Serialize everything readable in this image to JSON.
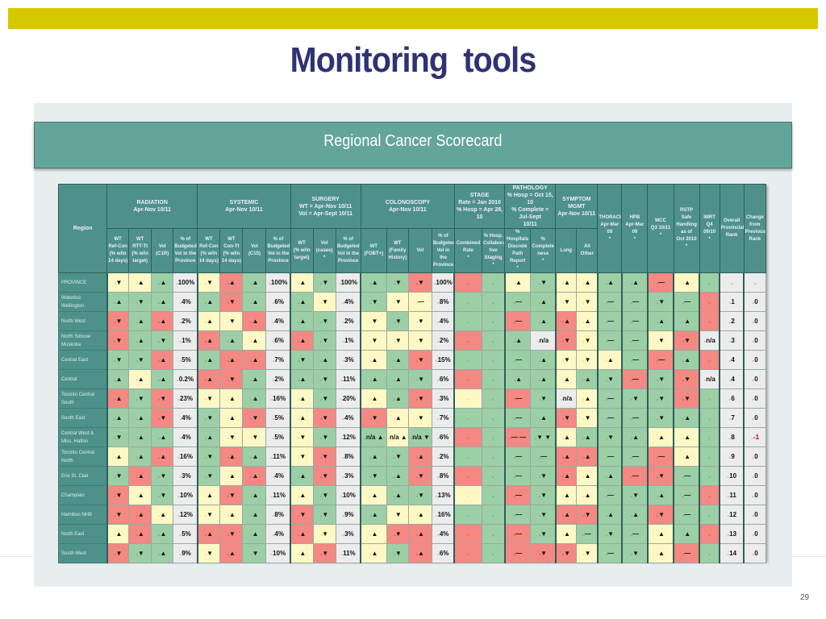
{
  "slide": {
    "title": "Monitoring  tools",
    "banner": "Regional  Cancer Scorecard",
    "page_number": "29"
  },
  "colors": {
    "G": "#9ccfa5",
    "Y": "#fdf8c4",
    "R": "#f48882",
    "W": "#ececec",
    "header": "#4d918a",
    "title": "#2f3273",
    "topbar": "#d6c800"
  },
  "header": {
    "region": "Region",
    "groups": [
      {
        "label": "RADIATION\nApr-Nov 10/11",
        "subs": [
          "WT\nRef-Con\n(% w/in\n14 days)",
          "WT\nRTT-Tt\n(% w/in\ntarget)",
          "Vol\n(C1R)",
          "% of\nBudgeted\nVol in the\nProvince"
        ]
      },
      {
        "label": "SYSTEMIC\nApr-Nov 10/11",
        "subs": [
          "WT\nRef-Con\n(% w/in\n14 days)",
          "WT\nCon-Tt\n(% w/in\n14 days)",
          "Vol\n(C15)",
          "% of\nBudgeted\nVol in the\nProvince"
        ]
      },
      {
        "label": "SURGERY\nWT = Apr-Nov 10/11\nVol = Apr-Sept 10/11",
        "subs": [
          "WT\n(% w/in\ntarget)",
          "Vol\n(cases)\n*",
          "% of\nBudgeted\nVol in the\nProvince"
        ]
      },
      {
        "label": "COLONOSCOPY\nApr-Nov 10/11",
        "subs": [
          "WT\n(FOBT+)",
          "WT\n(Family\nHistory)",
          "Vol",
          "% of\nBudgeted\nVol in the\nProvince"
        ]
      },
      {
        "label": "STAGE\nRate = Jan 2010\n% Hosp = Apr 28, 10",
        "subs": [
          "Combined\nRate\n*",
          "% Hosp.\nCollabora\ntive\nStaging\n*"
        ]
      },
      {
        "label": "PATHOLOGY\n% Hosp = Oct 15, 10\n% Complete = Jul-Sept\n10/11",
        "subs": [
          "% Hospitals\nDiscrete\nPath\nReport\n*",
          "%\nComplete\nness\n*"
        ]
      },
      {
        "label": "SYMPTOM MGMT\nApr-Nov 10/11",
        "subs": [
          "Lung",
          "All\nOther"
        ]
      }
    ],
    "singles": [
      "THORACIC\nApr-Mar\n09\n*",
      "HPB\nApr-Mar\n09\n*",
      "MCC\nQ3 10/11\n*",
      "RSTP Safe\nHandling\nas of\nOct 2010\n*",
      "IMRT\nQ4\n09/10\n*",
      "Overall\nProvincial\nRank",
      "Change\nfrom\nPrevious\nRank"
    ]
  },
  "rows": [
    {
      "region": "PROVINCE",
      "cells": [
        "Y▼",
        "Y▲",
        "G▲",
        "W100%",
        "Y▼",
        "R▲",
        "G▲",
        "W100%",
        "Y▲",
        "G▼",
        "W100%",
        "G▲",
        "G▼",
        "R▼",
        "W100%",
        "R",
        "G",
        "Y▲",
        "G▼",
        "Y▲",
        "Y▲",
        "G▲",
        "G▲",
        "R—",
        "Y▲",
        "G",
        "W",
        "W"
      ]
    },
    {
      "region": "Waterloo\nWellington",
      "cells": [
        "G▲",
        "G▼",
        "G▲",
        "W4%",
        "G▲",
        "R▼",
        "G▲",
        "W6%",
        "G▲",
        "Y▼",
        "W4%",
        "G▼",
        "Y▼",
        "Y—",
        "W8%",
        "G",
        "G",
        "G—",
        "G▲",
        "Y▼",
        "Y▼",
        "G—",
        "G—",
        "G▼",
        "G—",
        "R",
        "W1",
        "W0"
      ]
    },
    {
      "region": "North West",
      "cells": [
        "R▼",
        "G▲",
        "R▲",
        "W2%",
        "Y▲",
        "Y▼",
        "R▲",
        "W4%",
        "G▲",
        "G▼",
        "W2%",
        "Y▼",
        "G▼",
        "Y▼",
        "W4%",
        "G",
        "G",
        "R—",
        "G▲",
        "R▲",
        "Y▲",
        "G—",
        "G—",
        "G▲",
        "G▲",
        "R",
        "W2",
        "W0"
      ]
    },
    {
      "region": "North Simcoe\nMuskoka",
      "cells": [
        "R▼",
        "G▲",
        "G▼",
        "W1%",
        "R▲",
        "G▲",
        "Y▲",
        "W6%",
        "R▲",
        "G▼",
        "W1%",
        "Y▼",
        "Y▼",
        "Y▼",
        "W2%",
        "R",
        "G",
        "G▲",
        "Wn/a",
        "R▼",
        "Y▼",
        "G—",
        "G—",
        "Y▼",
        "R▼",
        "Wn/a",
        "W3",
        "W0"
      ]
    },
    {
      "region": "Central East",
      "cells": [
        "G▼",
        "G▼",
        "R▲",
        "W5%",
        "G▲",
        "R▲",
        "R▲",
        "W7%",
        "G▼",
        "G▲",
        "W3%",
        "Y▲",
        "G▲",
        "R▼",
        "W15%",
        "G",
        "G",
        "G—",
        "G▲",
        "Y▼",
        "Y▼",
        "Y▲",
        "G—",
        "R—",
        "G▲",
        "R",
        "W4",
        "W0"
      ]
    },
    {
      "region": "Central",
      "cells": [
        "G▲",
        "Y▲",
        "G▲",
        "W0.2%",
        "R▲",
        "R▼",
        "G▲",
        "W2%",
        "G▲",
        "G▼",
        "W11%",
        "G▲",
        "G▲",
        "G▼",
        "W6%",
        "R",
        "G",
        "G▲",
        "G▲",
        "Y▲",
        "G▲",
        "G▼",
        "R—",
        "G▼",
        "R▼",
        "Wn/a",
        "W4",
        "W0"
      ]
    },
    {
      "region": "Toronto Central\nSouth",
      "cells": [
        "R▲",
        "G▼",
        "R▼",
        "W23%",
        "Y▼",
        "Y▲",
        "G▲",
        "W16%",
        "Y▲",
        "G▼",
        "W20%",
        "Y▲",
        "G▲",
        "R▼",
        "W3%",
        "Y",
        "G",
        "R—",
        "G▼",
        "Wn/a",
        "Y▲",
        "G—",
        "G▼",
        "G▼",
        "R▼",
        "G",
        "W6",
        "W0"
      ]
    },
    {
      "region": "South East",
      "cells": [
        "G▲",
        "G▲",
        "R▼",
        "W4%",
        "G▼",
        "Y▲",
        "R▼",
        "W5%",
        "Y▲",
        "R▼",
        "W4%",
        "R▼",
        "Y▲",
        "Y▼",
        "W7%",
        "G",
        "G",
        "G—",
        "G▲",
        "R▼",
        "Y▼",
        "G—",
        "G—",
        "G▼",
        "G▲",
        "G",
        "W7",
        "W0"
      ]
    },
    {
      "region": "Central West &\nMiss. Halton",
      "cells": [
        "G▼",
        "G▲",
        "G▲",
        "W4%",
        "G▲",
        "Y▼",
        "Y▼",
        "W5%",
        "Y▼",
        "G▼",
        "W12%",
        "Gn/a ▲",
        "Yn/a ▲",
        "Gn/a ▼",
        "W6%",
        "R",
        "G",
        "R— —",
        "G▼ ▼",
        "Y▲",
        "G▲",
        "G▼",
        "G▲",
        "Y▲",
        "Y▲",
        "G",
        "W8",
        "W-1"
      ]
    },
    {
      "region": "Toronto Central\nNorth",
      "cells": [
        "Y▲",
        "G▲",
        "R▲",
        "W16%",
        "G▼",
        "R▲",
        "G▲",
        "W11%",
        "Y▼",
        "R▼",
        "W8%",
        "G▲",
        "G▼",
        "R▲",
        "W2%",
        "G",
        "G",
        "G—",
        "G—",
        "R▲",
        "R▲",
        "G—",
        "G—",
        "R—",
        "Y▲",
        "G",
        "W9",
        "W0"
      ]
    },
    {
      "region": "Erie St. Clair",
      "cells": [
        "G▼",
        "R▲",
        "G▼",
        "W3%",
        "G▼",
        "Y▲",
        "R▲",
        "W4%",
        "G▲",
        "R▼",
        "W3%",
        "G▼",
        "G▲",
        "R▼",
        "W8%",
        "R",
        "G",
        "G—",
        "G▼",
        "R▲",
        "Y▲",
        "G▲",
        "R—",
        "R▼",
        "G—",
        "G",
        "W10",
        "W0"
      ]
    },
    {
      "region": "Champlain",
      "cells": [
        "R▼",
        "Y▲",
        "G▼",
        "W10%",
        "Y▲",
        "R▼",
        "G▲",
        "W11%",
        "Y▲",
        "G▼",
        "W10%",
        "Y▲",
        "G▲",
        "G▼",
        "W13%",
        "Y",
        "G",
        "R—",
        "G▼",
        "Y▲",
        "Y▲",
        "G—",
        "G▼",
        "G▲",
        "G—",
        "R",
        "W11",
        "W0"
      ]
    },
    {
      "region": "Hamilton NHB",
      "cells": [
        "R▼",
        "R▲",
        "Y▲",
        "W12%",
        "Y▼",
        "Y▲",
        "G▲",
        "W8%",
        "R▼",
        "G▼",
        "W9%",
        "G▲",
        "Y▼",
        "Y▲",
        "W16%",
        "G",
        "G",
        "G—",
        "G▼",
        "R▲",
        "R▼",
        "G▲",
        "G▲",
        "R▼",
        "G—",
        "G",
        "W12",
        "W0"
      ]
    },
    {
      "region": "North East",
      "cells": [
        "Y▲",
        "R▲",
        "G▲",
        "W5%",
        "R▲",
        "R▼",
        "G▲",
        "W4%",
        "R▲",
        "Y▼",
        "W3%",
        "Y▲",
        "R▼",
        "R▲",
        "W4%",
        "R",
        "G",
        "R—",
        "G▼",
        "Y▲",
        "G—",
        "G▼",
        "G—",
        "Y▲",
        "G▲",
        "R",
        "W13",
        "W0"
      ]
    },
    {
      "region": "South West",
      "cells": [
        "R▼",
        "G▼",
        "G▲",
        "W9%",
        "Y▼",
        "R▲",
        "G▼",
        "W10%",
        "Y▲",
        "R▼",
        "W11%",
        "Y▲",
        "G▼",
        "R▲",
        "W6%",
        "R",
        "G",
        "R—",
        "R▼",
        "R▼",
        "Y▼",
        "G—",
        "G▼",
        "Y▲",
        "R—",
        "G",
        "W14",
        "W0"
      ]
    }
  ]
}
